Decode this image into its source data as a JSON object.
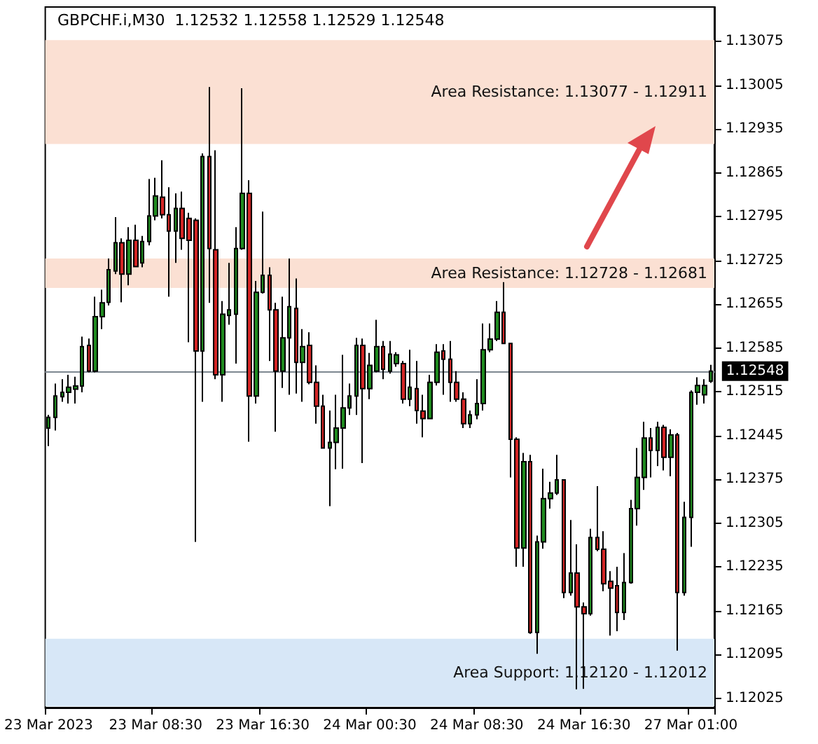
{
  "chart_data": {
    "type": "candlestick",
    "title": "GBPCHF.i,M30  1.12532 1.12558 1.12529 1.12548",
    "categories": [
      "23 Mar 2023",
      null,
      null,
      null,
      null,
      null,
      null,
      null,
      null,
      null,
      null,
      null,
      null,
      null,
      null,
      null,
      "23 Mar 08:30",
      null,
      null,
      null,
      null,
      null,
      null,
      null,
      null,
      null,
      null,
      null,
      null,
      null,
      null,
      null,
      "23 Mar 16:30",
      null,
      null,
      null,
      null,
      null,
      null,
      null,
      null,
      null,
      null,
      null,
      null,
      null,
      null,
      null,
      "24 Mar 00:30",
      null,
      null,
      null,
      null,
      null,
      null,
      null,
      null,
      null,
      null,
      null,
      null,
      null,
      null,
      null,
      "24 Mar 08:30",
      null,
      null,
      null,
      null,
      null,
      null,
      null,
      null,
      null,
      null,
      null,
      null,
      null,
      null,
      null,
      "24 Mar 16:30",
      null,
      null,
      null,
      null,
      null,
      null,
      null,
      null,
      null,
      null,
      null,
      null,
      null,
      null,
      null,
      "27 Mar 01:00",
      null,
      null,
      null
    ],
    "ohlc": [
      [
        1.12457,
        1.12478,
        1.12428,
        1.12474
      ],
      [
        1.12474,
        1.12528,
        1.12453,
        1.12508
      ],
      [
        1.12507,
        1.12535,
        1.12499,
        1.12514
      ],
      [
        1.12514,
        1.12542,
        1.12496,
        1.12522
      ],
      [
        1.12519,
        1.12539,
        1.12496,
        1.12524
      ],
      [
        1.12524,
        1.12603,
        1.12514,
        1.12587
      ],
      [
        1.12589,
        1.126,
        1.12546,
        1.12548
      ],
      [
        1.12548,
        1.12667,
        1.12546,
        1.12635
      ],
      [
        1.12635,
        1.12678,
        1.12615,
        1.12657
      ],
      [
        1.12658,
        1.12728,
        1.12653,
        1.1271
      ],
      [
        1.12708,
        1.12794,
        1.12703,
        1.12753
      ],
      [
        1.12753,
        1.1276,
        1.12658,
        1.12703
      ],
      [
        1.12703,
        1.12778,
        1.12685,
        1.12757
      ],
      [
        1.12757,
        1.12782,
        1.12714,
        1.12715
      ],
      [
        1.12721,
        1.12764,
        1.12714,
        1.12755
      ],
      [
        1.12755,
        1.12855,
        1.12749,
        1.12796
      ],
      [
        1.12796,
        1.12857,
        1.12789,
        1.12828
      ],
      [
        1.12826,
        1.12885,
        1.12792,
        1.12798
      ],
      [
        1.12798,
        1.12842,
        1.12667,
        1.12772
      ],
      [
        1.12772,
        1.12832,
        1.12721,
        1.12808
      ],
      [
        1.12808,
        1.12835,
        1.12742,
        1.1276
      ],
      [
        1.12792,
        1.12801,
        1.12594,
        1.12757
      ],
      [
        1.12789,
        1.12792,
        1.12275,
        1.1258
      ],
      [
        1.1258,
        1.12896,
        1.12499,
        1.12891
      ],
      [
        1.12891,
        1.13002,
        1.12657,
        1.12744
      ],
      [
        1.12742,
        1.12901,
        1.12535,
        1.12542
      ],
      [
        1.12542,
        1.1266,
        1.12499,
        1.12639
      ],
      [
        1.12637,
        1.12721,
        1.12622,
        1.12646
      ],
      [
        1.12639,
        1.12778,
        1.1256,
        1.12744
      ],
      [
        1.12744,
        1.13,
        1.12742,
        1.12832
      ],
      [
        1.12832,
        1.12853,
        1.12435,
        1.12508
      ],
      [
        1.12508,
        1.12692,
        1.12496,
        1.12674
      ],
      [
        1.12674,
        1.12803,
        1.12672,
        1.12701
      ],
      [
        1.12701,
        1.12714,
        1.12564,
        1.12646
      ],
      [
        1.12646,
        1.12657,
        1.12451,
        1.12548
      ],
      [
        1.12548,
        1.12667,
        1.12521,
        1.12601
      ],
      [
        1.12601,
        1.12728,
        1.1251,
        1.12651
      ],
      [
        1.12648,
        1.12696,
        1.12512,
        1.12562
      ],
      [
        1.12562,
        1.12615,
        1.12499,
        1.12587
      ],
      [
        1.12589,
        1.1261,
        1.12527,
        1.1253
      ],
      [
        1.1253,
        1.12557,
        1.12464,
        1.12492
      ],
      [
        1.12492,
        1.1251,
        1.12425,
        1.12425
      ],
      [
        1.12425,
        1.12485,
        1.12332,
        1.12434
      ],
      [
        1.12434,
        1.1251,
        1.12391,
        1.12457
      ],
      [
        1.12457,
        1.12574,
        1.12392,
        1.12489
      ],
      [
        1.12489,
        1.12528,
        1.12478,
        1.12508
      ],
      [
        1.12508,
        1.12601,
        1.12478,
        1.12589
      ],
      [
        1.12589,
        1.126,
        1.12401,
        1.1252
      ],
      [
        1.1252,
        1.12577,
        1.12503,
        1.12557
      ],
      [
        1.12548,
        1.1263,
        1.12546,
        1.12587
      ],
      [
        1.12587,
        1.12596,
        1.12535,
        1.12551
      ],
      [
        1.12548,
        1.12596,
        1.12544,
        1.12575
      ],
      [
        1.1256,
        1.12578,
        1.12555,
        1.12574
      ],
      [
        1.1256,
        1.12564,
        1.12496,
        1.12503
      ],
      [
        1.12503,
        1.12582,
        1.12492,
        1.12522
      ],
      [
        1.1252,
        1.12564,
        1.12464,
        1.12485
      ],
      [
        1.12484,
        1.1251,
        1.12442,
        1.12472
      ],
      [
        1.12472,
        1.12542,
        1.12471,
        1.1253
      ],
      [
        1.1253,
        1.12591,
        1.12525,
        1.12578
      ],
      [
        1.1258,
        1.12591,
        1.1251,
        1.12567
      ],
      [
        1.12567,
        1.12596,
        1.12499,
        1.1253
      ],
      [
        1.1253,
        1.12548,
        1.12499,
        1.12503
      ],
      [
        1.12503,
        1.12514,
        1.12457,
        1.12464
      ],
      [
        1.12464,
        1.12485,
        1.12457,
        1.12478
      ],
      [
        1.12478,
        1.12535,
        1.12471,
        1.12496
      ],
      [
        1.12496,
        1.12624,
        1.12485,
        1.12582
      ],
      [
        1.12582,
        1.12624,
        1.12578,
        1.12599
      ],
      [
        1.12599,
        1.1266,
        1.12596,
        1.12642
      ],
      [
        1.12642,
        1.1269,
        1.12592,
        1.12592
      ],
      [
        1.12592,
        1.12592,
        1.12378,
        1.12439
      ],
      [
        1.12439,
        1.12442,
        1.12235,
        1.12265
      ],
      [
        1.12265,
        1.12417,
        1.12235,
        1.12403
      ],
      [
        1.12403,
        1.12414,
        1.12128,
        1.1213
      ],
      [
        1.1213,
        1.12285,
        1.12096,
        1.12275
      ],
      [
        1.12275,
        1.12392,
        1.12264,
        1.12344
      ],
      [
        1.12344,
        1.12371,
        1.12328,
        1.12353
      ],
      [
        1.12353,
        1.12414,
        1.1235,
        1.12374
      ],
      [
        1.12374,
        1.12374,
        1.12185,
        1.12194
      ],
      [
        1.12194,
        1.1231,
        1.12189,
        1.12225
      ],
      [
        1.12225,
        1.12271,
        1.12039,
        1.12171
      ],
      [
        1.12171,
        1.12178,
        1.1204,
        1.1216
      ],
      [
        1.1216,
        1.12296,
        1.12157,
        1.12282
      ],
      [
        1.12282,
        1.12364,
        1.1226,
        1.12263
      ],
      [
        1.12263,
        1.12292,
        1.12196,
        1.12208
      ],
      [
        1.12212,
        1.12228,
        1.12125,
        1.12201
      ],
      [
        1.12205,
        1.12235,
        1.12132,
        1.12162
      ],
      [
        1.12162,
        1.12257,
        1.1215,
        1.1221
      ],
      [
        1.1221,
        1.12342,
        1.12208,
        1.12328
      ],
      [
        1.12328,
        1.12425,
        1.12301,
        1.12378
      ],
      [
        1.12378,
        1.12467,
        1.12358,
        1.12441
      ],
      [
        1.12441,
        1.12457,
        1.12378,
        1.12421
      ],
      [
        1.12421,
        1.12467,
        1.12396,
        1.12458
      ],
      [
        1.12458,
        1.12462,
        1.12389,
        1.1241
      ],
      [
        1.1241,
        1.12455,
        1.1238,
        1.12446
      ],
      [
        1.12446,
        1.12449,
        1.12101,
        1.12194
      ],
      [
        1.12194,
        1.12339,
        1.12189,
        1.12314
      ],
      [
        1.12314,
        1.12517,
        1.12267,
        1.12514
      ],
      [
        1.12514,
        1.12538,
        1.12494,
        1.12525
      ],
      [
        1.1251,
        1.12535,
        1.12496,
        1.12525
      ],
      [
        1.12532,
        1.12558,
        1.12529,
        1.12548
      ]
    ],
    "colors": [
      "#1e8a1e",
      "#1e8a1e",
      "#1e8a1e",
      "#1e8a1e",
      "#1e8a1e",
      "#1e8a1e",
      "#d22424",
      "#1e8a1e",
      "#1e8a1e",
      "#1e8a1e",
      "#1e8a1e",
      "#d22424",
      "#1e8a1e",
      "#d22424",
      "#1e8a1e",
      "#1e8a1e",
      "#1e8a1e",
      "#d22424",
      "#d22424",
      "#1e8a1e",
      "#d22424",
      "#d22424",
      "#d22424",
      "#1e8a1e",
      "#d22424",
      "#d22424",
      "#1e8a1e",
      "#1e8a1e",
      "#1e8a1e",
      "#1e8a1e",
      "#d22424",
      "#1e8a1e",
      "#1e8a1e",
      "#d22424",
      "#d22424",
      "#1e8a1e",
      "#1e8a1e",
      "#d22424",
      "#1e8a1e",
      "#d22424",
      "#d22424",
      "#d22424",
      "#1e8a1e",
      "#1e8a1e",
      "#1e8a1e",
      "#1e8a1e",
      "#1e8a1e",
      "#d22424",
      "#1e8a1e",
      "#1e8a1e",
      "#d22424",
      "#1e8a1e",
      "#1e8a1e",
      "#d22424",
      "#1e8a1e",
      "#d22424",
      "#d22424",
      "#1e8a1e",
      "#1e8a1e",
      "#d22424",
      "#d22424",
      "#d22424",
      "#d22424",
      "#1e8a1e",
      "#1e8a1e",
      "#1e8a1e",
      "#1e8a1e",
      "#1e8a1e",
      "#d22424",
      "#d22424",
      "#d22424",
      "#1e8a1e",
      "#d22424",
      "#1e8a1e",
      "#1e8a1e",
      "#1e8a1e",
      "#1e8a1e",
      "#d22424",
      "#1e8a1e",
      "#d22424",
      "#d22424",
      "#1e8a1e",
      "#d22424",
      "#d22424",
      "#d22424",
      "#d22424",
      "#1e8a1e",
      "#1e8a1e",
      "#1e8a1e",
      "#1e8a1e",
      "#d22424",
      "#1e8a1e",
      "#d22424",
      "#1e8a1e",
      "#d22424",
      "#1e8a1e",
      "#1e8a1e",
      "#1e8a1e",
      "#1e8a1e",
      "#1e8a1e"
    ],
    "ylim": [
      1.1201,
      1.1313
    ],
    "yticks": [
      1.12025,
      1.12095,
      1.12165,
      1.12235,
      1.12305,
      1.12375,
      1.12445,
      1.12515,
      1.12585,
      1.12655,
      1.12725,
      1.12795,
      1.12865,
      1.12935,
      1.13005,
      1.13075
    ],
    "bands": [
      {
        "axis": "y",
        "from": 1.12911,
        "to": 1.13077,
        "label": "Area Resistance: 1.13077 - 1.12911",
        "color": "#fbe0d3"
      },
      {
        "axis": "y",
        "from": 1.12681,
        "to": 1.12728,
        "label": "Area Resistance: 1.12728 - 1.12681",
        "color": "#fbe0d3"
      },
      {
        "axis": "y",
        "from": 1.12012,
        "to": 1.1212,
        "label": "Area Support: 1.12120 - 1.12012",
        "color": "#d7e7f7"
      }
    ],
    "ref_lines": [
      {
        "axis": "y",
        "value": 1.12548,
        "label": "1.12548",
        "color": "#7d8791"
      }
    ]
  }
}
